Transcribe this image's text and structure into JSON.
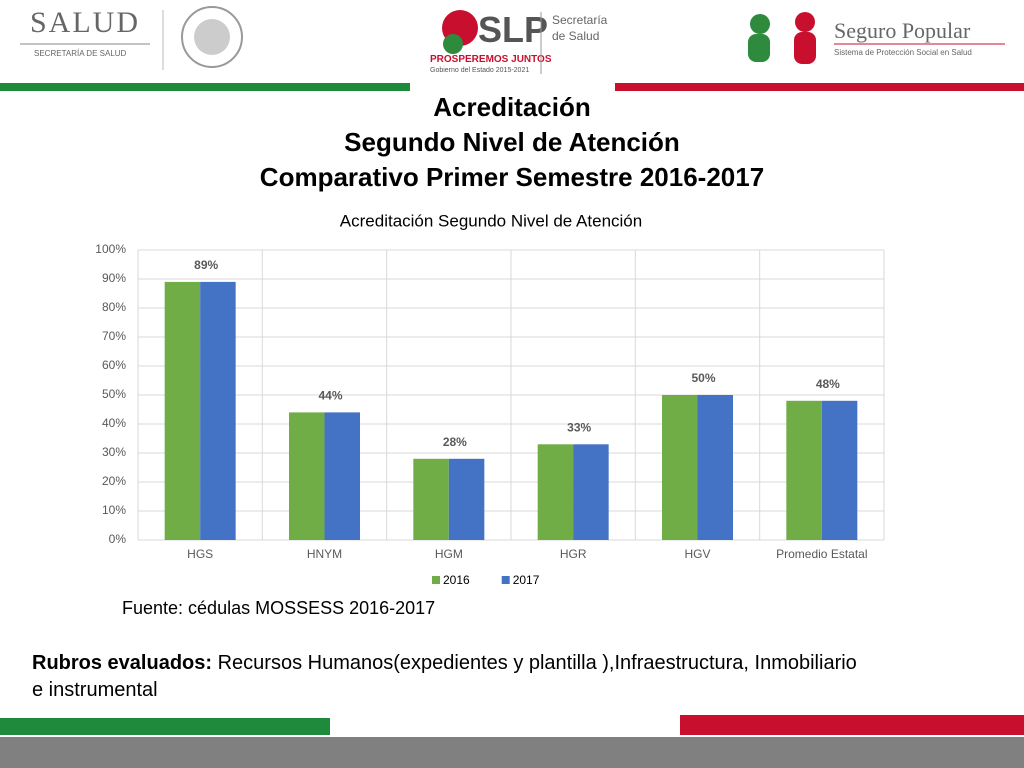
{
  "header": {
    "salud": "SALUD",
    "salud_sub": "SECRETARÍA DE SALUD",
    "slp": "SLP",
    "slp_dept_1": "Secretaría",
    "slp_dept_2": "de Salud",
    "slp_motto": "PROSPEREMOS JUNTOS",
    "slp_gov": "Gobierno del Estado 2015-2021",
    "seguro": "Seguro Popular",
    "seguro_sub": "Sistema de Protección Social en Salud"
  },
  "title_lines": [
    "Acreditación",
    "Segundo Nivel de Atención",
    "Comparativo Primer Semestre 2016-2017"
  ],
  "chart_data": {
    "type": "bar",
    "title": "Acreditación Segundo Nivel de Atención",
    "categories": [
      "HGS",
      "HNYM",
      "HGM",
      "HGR",
      "HGV",
      "Promedio Estatal"
    ],
    "series": [
      {
        "name": "2016",
        "color": "#70ad47",
        "values": [
          89,
          44,
          28,
          33,
          50,
          48
        ],
        "value_labels": [
          "89%",
          "44%",
          "28%",
          "33%",
          "50%",
          "48%"
        ]
      },
      {
        "name": "2017",
        "color": "#4472c4",
        "values": [
          89,
          44,
          28,
          33,
          50,
          48
        ]
      }
    ],
    "ylim": [
      0,
      100
    ],
    "yticks": [
      {
        "value": 0,
        "label": "0%"
      },
      {
        "value": 10,
        "label": "10%"
      },
      {
        "value": 20,
        "label": "20%"
      },
      {
        "value": 30,
        "label": "30%"
      },
      {
        "value": 40,
        "label": "40%"
      },
      {
        "value": 50,
        "label": "50%"
      },
      {
        "value": 60,
        "label": "60%"
      },
      {
        "value": 70,
        "label": "70%"
      },
      {
        "value": 80,
        "label": "80%"
      },
      {
        "value": 90,
        "label": "90%"
      },
      {
        "value": 100,
        "label": "100%"
      }
    ],
    "grid": true,
    "legend": "bottom"
  },
  "source": "Fuente: cédulas MOSSESS 2016-2017",
  "rubros": {
    "label": "Rubros evaluados:",
    "text": "Recursos Humanos(expedientes y plantilla ),Infraestructura, Inmobiliario e instrumental"
  }
}
